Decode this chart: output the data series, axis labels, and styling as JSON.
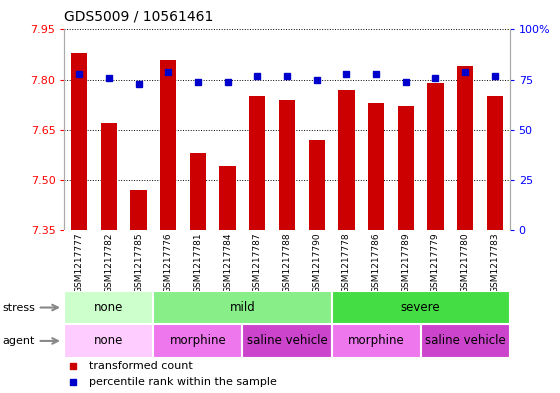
{
  "title": "GDS5009 / 10561461",
  "samples": [
    "GSM1217777",
    "GSM1217782",
    "GSM1217785",
    "GSM1217776",
    "GSM1217781",
    "GSM1217784",
    "GSM1217787",
    "GSM1217788",
    "GSM1217790",
    "GSM1217778",
    "GSM1217786",
    "GSM1217789",
    "GSM1217779",
    "GSM1217780",
    "GSM1217783"
  ],
  "transformed_count": [
    7.88,
    7.67,
    7.47,
    7.86,
    7.58,
    7.54,
    7.75,
    7.74,
    7.62,
    7.77,
    7.73,
    7.72,
    7.79,
    7.84,
    7.75
  ],
  "percentile_rank": [
    78,
    76,
    73,
    79,
    74,
    74,
    77,
    77,
    75,
    78,
    78,
    74,
    76,
    79,
    77
  ],
  "ymin": 7.35,
  "ymax": 7.95,
  "yticks": [
    7.35,
    7.5,
    7.65,
    7.8,
    7.95
  ],
  "right_yticks": [
    0,
    25,
    50,
    75,
    100
  ],
  "bar_color": "#cc0000",
  "dot_color": "#0000cc",
  "stress_groups": [
    {
      "label": "none",
      "start": 0,
      "end": 3,
      "color": "#ccffcc"
    },
    {
      "label": "mild",
      "start": 3,
      "end": 9,
      "color": "#88ee88"
    },
    {
      "label": "severe",
      "start": 9,
      "end": 15,
      "color": "#44dd44"
    }
  ],
  "agent_groups": [
    {
      "label": "none",
      "start": 0,
      "end": 3,
      "color": "#ffccff"
    },
    {
      "label": "morphine",
      "start": 3,
      "end": 6,
      "color": "#ee77ee"
    },
    {
      "label": "saline vehicle",
      "start": 6,
      "end": 9,
      "color": "#cc44cc"
    },
    {
      "label": "morphine",
      "start": 9,
      "end": 12,
      "color": "#ee77ee"
    },
    {
      "label": "saline vehicle",
      "start": 12,
      "end": 15,
      "color": "#cc44cc"
    }
  ],
  "xtick_bg": "#d0d0d0",
  "plot_bg": "#ffffff",
  "fig_bg": "#ffffff",
  "grid_color": "#000000",
  "title_fontsize": 10,
  "ytick_fontsize": 8,
  "xtick_fontsize": 6.5,
  "group_fontsize": 8.5,
  "label_fontsize": 8,
  "legend_fontsize": 8
}
